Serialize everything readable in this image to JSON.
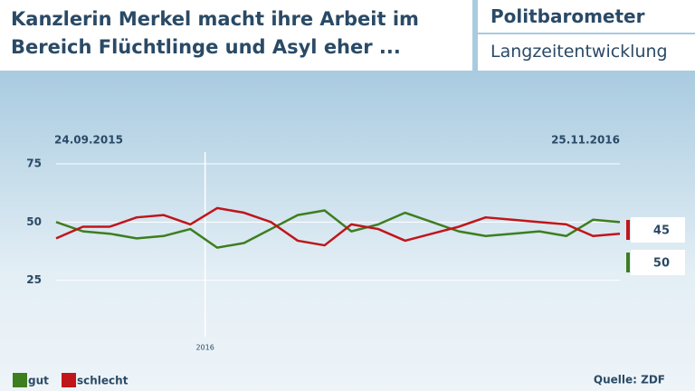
{
  "header": {
    "title": "Kanzlerin Merkel macht ihre Arbeit im Bereich Flüchtlinge und Asyl eher ...",
    "brand": "Politbarometer",
    "subtitle": "Langzeitentwicklung"
  },
  "chart_data": {
    "type": "line",
    "start_label": "24.09.2015",
    "end_label": "25.11.2016",
    "marker_label": "2016",
    "categories": [
      null,
      null,
      null,
      null,
      null,
      null,
      null,
      null,
      null,
      null,
      null,
      null,
      null,
      null,
      null,
      null,
      null,
      null,
      null,
      null,
      null,
      null
    ],
    "series": [
      {
        "name": "gut",
        "color": "#3d7e1f",
        "values": [
          50,
          46,
          45,
          43,
          44,
          47,
          39,
          41,
          47,
          53,
          55,
          46,
          49,
          54,
          50,
          46,
          44,
          45,
          46,
          44,
          51,
          50
        ]
      },
      {
        "name": "schlecht",
        "color": "#c0151b",
        "values": [
          43,
          48,
          48,
          52,
          53,
          49,
          56,
          54,
          50,
          42,
          40,
          49,
          47,
          42,
          45,
          48,
          52,
          51,
          50,
          49,
          44,
          45
        ]
      }
    ],
    "ylim": [
      0,
      75
    ],
    "yticks": [
      25,
      50,
      75
    ],
    "grid": true,
    "source": "Quelle: ZDF"
  }
}
